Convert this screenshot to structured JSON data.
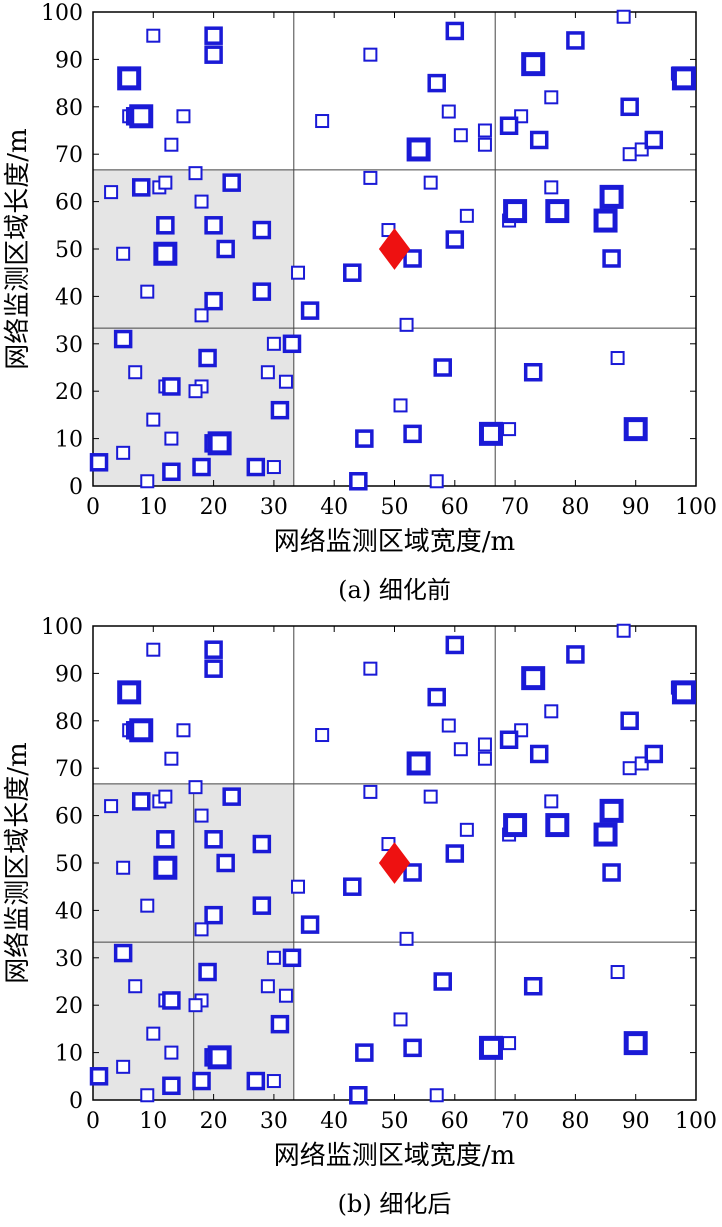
{
  "colors": {
    "sensor": "#1a1ad6",
    "target": "#ee1111",
    "shade": "#e5e5e5",
    "grid": "#444444"
  },
  "shared_points": {
    "small": [
      [
        10,
        95
      ],
      [
        46,
        91
      ],
      [
        38,
        77
      ],
      [
        6,
        78
      ],
      [
        15,
        78
      ],
      [
        59,
        79
      ],
      [
        13,
        72
      ],
      [
        61,
        74
      ],
      [
        71,
        78
      ],
      [
        65,
        75
      ],
      [
        65,
        72
      ],
      [
        76,
        82
      ],
      [
        88,
        99
      ],
      [
        97,
        87
      ],
      [
        89,
        70
      ],
      [
        91,
        71
      ],
      [
        17,
        66
      ],
      [
        3,
        62
      ],
      [
        11,
        63
      ],
      [
        12,
        64
      ],
      [
        18,
        60
      ],
      [
        46,
        65
      ],
      [
        56,
        64
      ],
      [
        76,
        63
      ],
      [
        62,
        57
      ],
      [
        69,
        56
      ],
      [
        5,
        49
      ],
      [
        49,
        54
      ],
      [
        9,
        41
      ],
      [
        34,
        45
      ],
      [
        18,
        36
      ],
      [
        52,
        34
      ],
      [
        7,
        24
      ],
      [
        12,
        21
      ],
      [
        18,
        21
      ],
      [
        17,
        20
      ],
      [
        30,
        30
      ],
      [
        29,
        24
      ],
      [
        32,
        22
      ],
      [
        10,
        14
      ],
      [
        51,
        17
      ],
      [
        13,
        10
      ],
      [
        5,
        7
      ],
      [
        87,
        27
      ],
      [
        69,
        12
      ],
      [
        9,
        1
      ],
      [
        57,
        1
      ],
      [
        30,
        4
      ]
    ],
    "medium": [
      [
        20,
        95
      ],
      [
        60,
        96
      ],
      [
        20,
        91
      ],
      [
        80,
        94
      ],
      [
        57,
        85
      ],
      [
        7,
        78
      ],
      [
        69,
        76
      ],
      [
        74,
        73
      ],
      [
        89,
        80
      ],
      [
        93,
        73
      ],
      [
        8,
        63
      ],
      [
        12,
        55
      ],
      [
        20,
        55
      ],
      [
        28,
        54
      ],
      [
        23,
        64
      ],
      [
        12,
        49
      ],
      [
        22,
        50
      ],
      [
        60,
        52
      ],
      [
        20,
        39
      ],
      [
        28,
        41
      ],
      [
        36,
        37
      ],
      [
        43,
        45
      ],
      [
        53,
        48
      ],
      [
        86,
        48
      ],
      [
        5,
        31
      ],
      [
        33,
        30
      ],
      [
        58,
        25
      ],
      [
        73,
        24
      ],
      [
        19,
        27
      ],
      [
        13,
        21
      ],
      [
        31,
        16
      ],
      [
        20,
        9
      ],
      [
        45,
        10
      ],
      [
        53,
        11
      ],
      [
        18,
        4
      ],
      [
        13,
        3
      ],
      [
        27,
        4
      ],
      [
        1,
        5
      ],
      [
        44,
        1
      ]
    ],
    "large": [
      [
        6,
        86
      ],
      [
        73,
        89
      ],
      [
        98,
        86
      ],
      [
        8,
        78
      ],
      [
        54,
        71
      ],
      [
        86,
        61
      ],
      [
        70,
        58
      ],
      [
        77,
        58
      ],
      [
        85,
        56
      ],
      [
        12,
        49
      ],
      [
        21,
        9
      ],
      [
        66,
        11
      ],
      [
        90,
        12
      ]
    ]
  },
  "target_point": [
    50,
    50
  ],
  "charts": [
    {
      "caption": "(a) 细化前",
      "xlabel": "网络监测区域宽度/m",
      "ylabel": "网络监测区域长度/m",
      "xticks": [
        "0",
        "10",
        "20",
        "30",
        "40",
        "50",
        "60",
        "70",
        "80",
        "90",
        "100"
      ],
      "yticks": [
        "0",
        "10",
        "20",
        "30",
        "40",
        "50",
        "60",
        "70",
        "80",
        "90",
        "100"
      ],
      "shaded_region": [
        0,
        33.3,
        0,
        66.7
      ],
      "grid_lines_x": [
        33.3,
        66.7
      ],
      "grid_lines_y": [
        33.3,
        66.7
      ],
      "sub_lines_x": [],
      "sub_lines_y": []
    },
    {
      "caption": "(b) 细化后",
      "xlabel": "网络监测区域宽度/m",
      "ylabel": "网络监测区域长度/m",
      "xticks": [
        "0",
        "10",
        "20",
        "30",
        "40",
        "50",
        "60",
        "70",
        "80",
        "90",
        "100"
      ],
      "yticks": [
        "0",
        "10",
        "20",
        "30",
        "40",
        "50",
        "60",
        "70",
        "80",
        "90",
        "100"
      ],
      "shaded_region": [
        0,
        33.3,
        0,
        66.7
      ],
      "grid_lines_x": [
        33.3,
        66.7
      ],
      "grid_lines_y": [
        33.3,
        66.7
      ],
      "sub_lines_x": [
        16.7
      ],
      "sub_lines_y": []
    }
  ],
  "chart_data": [
    {
      "type": "scatter",
      "xlim": [
        0,
        100
      ],
      "ylim": [
        0,
        100
      ],
      "grid": "3x3 partition lines",
      "series": []
    },
    {
      "type": "scatter",
      "xlim": [
        0,
        100
      ],
      "ylim": [
        0,
        100
      ],
      "grid": "3x3 partition lines with extra subdivision of shaded region at x=16.7",
      "series": []
    }
  ]
}
